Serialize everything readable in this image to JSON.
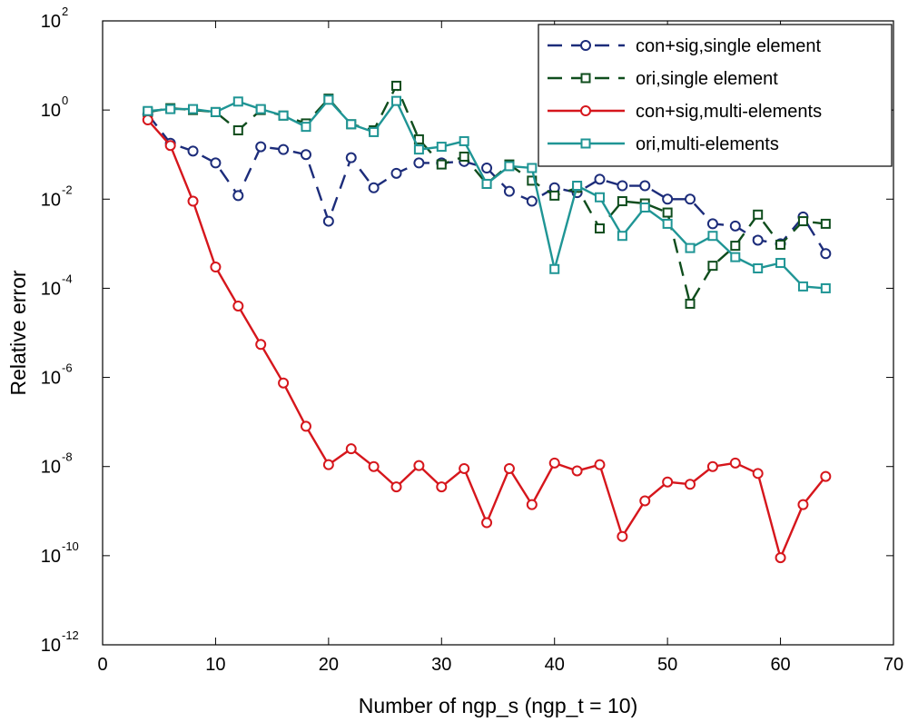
{
  "chart_data": {
    "type": "line",
    "xlabel": "Number of ngp_s (ngp_t = 10)",
    "ylabel": "Relative error",
    "xlim": [
      0,
      70
    ],
    "ylim_exp": [
      -12,
      2
    ],
    "yscale": "log",
    "grid": false,
    "legend_position": "top-right",
    "x_ticks": [
      "0",
      "10",
      "20",
      "30",
      "40",
      "50",
      "60",
      "70"
    ],
    "y_tick_base": "10",
    "y_tick_exponents": [
      "-12",
      "-10",
      "-8",
      "-6",
      "-4",
      "-2",
      "0",
      "2"
    ],
    "x": [
      4,
      6,
      8,
      10,
      12,
      14,
      16,
      18,
      20,
      22,
      24,
      26,
      28,
      30,
      32,
      34,
      36,
      38,
      40,
      42,
      44,
      46,
      48,
      50,
      52,
      54,
      56,
      58,
      60,
      62,
      64
    ],
    "series": [
      {
        "name": "con+sig,single element",
        "color": "#1c2c7a",
        "line_style": "dashed",
        "marker": "circle",
        "values": [
          0.8,
          0.18,
          0.12,
          0.065,
          0.012,
          0.15,
          0.13,
          0.1,
          0.0032,
          0.085,
          0.018,
          0.038,
          0.065,
          0.065,
          0.07,
          0.05,
          0.015,
          0.009,
          0.018,
          0.014,
          0.028,
          0.02,
          0.02,
          0.01,
          0.01,
          0.0028,
          0.0025,
          0.0012,
          0.001,
          0.004,
          0.0006
        ]
      },
      {
        "name": "ori,single element",
        "color": "#0f4d1d",
        "line_style": "dashed",
        "marker": "square",
        "values": [
          0.9,
          1.1,
          1.0,
          0.9,
          0.35,
          1.0,
          0.75,
          0.5,
          1.8,
          0.48,
          0.35,
          3.5,
          0.22,
          0.06,
          0.09,
          0.022,
          0.06,
          0.026,
          0.012,
          0.018,
          0.0022,
          0.009,
          0.008,
          0.005,
          4.5e-05,
          0.00032,
          0.0009,
          0.0045,
          0.00095,
          0.0032,
          0.0028
        ]
      },
      {
        "name": "con+sig,multi-elements",
        "color": "#d6161c",
        "line_style": "solid",
        "marker": "circle",
        "values": [
          0.6,
          0.16,
          0.009,
          0.0003,
          4e-05,
          5.5e-06,
          7.5e-07,
          8e-08,
          1.1e-08,
          2.5e-08,
          1e-08,
          3.5e-09,
          1.05e-08,
          3.5e-09,
          9e-09,
          5.5e-10,
          9e-09,
          1.4e-09,
          1.2e-08,
          8e-09,
          1.1e-08,
          2.7e-10,
          1.7e-09,
          4.5e-09,
          4e-09,
          1e-08,
          1.2e-08,
          7e-09,
          9e-11,
          1.4e-09,
          6e-09
        ]
      },
      {
        "name": "ori,multi-elements",
        "color": "#1f9595",
        "line_style": "solid",
        "marker": "square",
        "values": [
          0.95,
          1.05,
          1.05,
          0.9,
          1.55,
          1.05,
          0.75,
          0.42,
          1.7,
          0.48,
          0.32,
          1.6,
          0.13,
          0.15,
          0.2,
          0.022,
          0.055,
          0.05,
          0.00027,
          0.02,
          0.011,
          0.0015,
          0.0065,
          0.0028,
          0.0008,
          0.0015,
          0.0005,
          0.00028,
          0.00037,
          0.00011,
          0.0001
        ]
      }
    ]
  }
}
